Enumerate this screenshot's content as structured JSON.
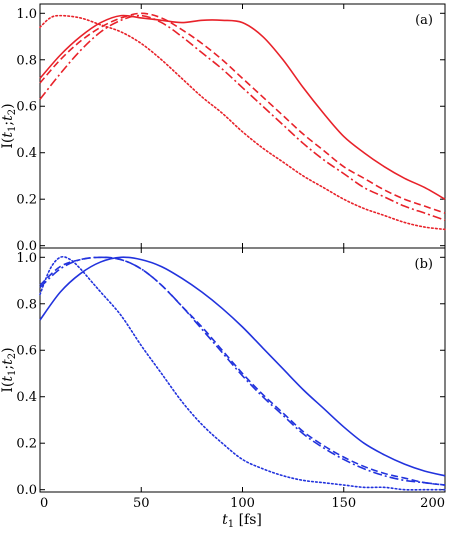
{
  "chart_data": [
    {
      "type": "line",
      "panel_label": "(a)",
      "ylabel": "I(t1;t2)",
      "xlabel": "",
      "xlim": [
        0,
        200
      ],
      "ylim": [
        -0.01,
        1.04
      ],
      "x_ticks": [
        0,
        50,
        100,
        150,
        200
      ],
      "x_tick_labels_shown": false,
      "y_ticks": [
        0.0,
        0.2,
        0.4,
        0.6,
        0.8,
        1.0
      ],
      "y_tick_labels": [
        "0.0",
        "0.2",
        "0.4",
        "0.6",
        "0.8",
        "1.0"
      ],
      "grid": false,
      "legend": "none",
      "color": "#e8222a",
      "series": [
        {
          "style": "solid",
          "x": [
            0,
            10,
            20,
            30,
            40,
            50,
            60,
            70,
            80,
            90,
            100,
            110,
            120,
            130,
            140,
            150,
            160,
            170,
            180,
            190,
            200
          ],
          "y": [
            0.72,
            0.82,
            0.9,
            0.96,
            0.99,
            0.98,
            0.97,
            0.96,
            0.97,
            0.97,
            0.96,
            0.9,
            0.8,
            0.68,
            0.57,
            0.47,
            0.4,
            0.34,
            0.29,
            0.25,
            0.2
          ]
        },
        {
          "style": "dashed",
          "x": [
            0,
            10,
            20,
            30,
            40,
            50,
            60,
            70,
            80,
            90,
            100,
            110,
            120,
            130,
            140,
            150,
            160,
            170,
            180,
            190,
            200
          ],
          "y": [
            0.7,
            0.8,
            0.88,
            0.94,
            0.98,
            1.0,
            0.98,
            0.93,
            0.87,
            0.8,
            0.72,
            0.64,
            0.56,
            0.48,
            0.41,
            0.34,
            0.29,
            0.24,
            0.2,
            0.17,
            0.14
          ]
        },
        {
          "style": "dash-dot",
          "x": [
            0,
            10,
            20,
            30,
            40,
            50,
            60,
            70,
            80,
            90,
            100,
            110,
            120,
            130,
            140,
            150,
            160,
            170,
            180,
            190,
            200
          ],
          "y": [
            0.63,
            0.74,
            0.84,
            0.92,
            0.97,
            0.99,
            0.96,
            0.9,
            0.83,
            0.76,
            0.68,
            0.6,
            0.52,
            0.44,
            0.37,
            0.31,
            0.25,
            0.21,
            0.17,
            0.14,
            0.11
          ]
        },
        {
          "style": "dotted",
          "x": [
            0,
            5,
            10,
            20,
            30,
            40,
            50,
            60,
            70,
            80,
            90,
            100,
            110,
            120,
            130,
            140,
            150,
            160,
            170,
            180,
            190,
            200
          ],
          "y": [
            0.94,
            0.98,
            0.99,
            0.98,
            0.95,
            0.92,
            0.87,
            0.8,
            0.72,
            0.64,
            0.57,
            0.49,
            0.42,
            0.36,
            0.3,
            0.25,
            0.2,
            0.16,
            0.13,
            0.1,
            0.08,
            0.07
          ]
        }
      ]
    },
    {
      "type": "line",
      "panel_label": "(b)",
      "ylabel": "I(t1;t2)",
      "xlabel": "t1 [fs]",
      "xlim": [
        0,
        200
      ],
      "ylim": [
        -0.01,
        1.04
      ],
      "x_ticks": [
        0,
        50,
        100,
        150,
        200
      ],
      "x_tick_labels": [
        "0",
        "50",
        "100",
        "150",
        "200"
      ],
      "y_ticks": [
        0.0,
        0.2,
        0.4,
        0.6,
        0.8,
        1.0
      ],
      "y_tick_labels": [
        "0.0",
        "0.2",
        "0.4",
        "0.6",
        "0.8",
        "1.0"
      ],
      "grid": false,
      "legend": "none",
      "color": "#2233dd",
      "series": [
        {
          "style": "solid",
          "x": [
            0,
            10,
            20,
            30,
            40,
            50,
            60,
            70,
            80,
            90,
            100,
            110,
            120,
            130,
            140,
            150,
            160,
            170,
            180,
            190,
            200
          ],
          "y": [
            0.73,
            0.85,
            0.93,
            0.98,
            1.0,
            0.99,
            0.96,
            0.91,
            0.85,
            0.78,
            0.7,
            0.61,
            0.52,
            0.43,
            0.35,
            0.27,
            0.2,
            0.15,
            0.11,
            0.08,
            0.06
          ]
        },
        {
          "style": "dashed",
          "x": [
            0,
            10,
            20,
            30,
            40,
            50,
            60,
            70,
            80,
            90,
            100,
            110,
            120,
            130,
            140,
            150,
            160,
            170,
            180,
            190,
            200
          ],
          "y": [
            0.88,
            0.96,
            0.99,
            1.0,
            0.99,
            0.95,
            0.88,
            0.79,
            0.7,
            0.6,
            0.5,
            0.41,
            0.33,
            0.25,
            0.19,
            0.14,
            0.1,
            0.07,
            0.05,
            0.03,
            0.02
          ]
        },
        {
          "style": "dash-dot",
          "x": [
            0,
            10,
            20,
            30,
            40,
            50,
            60,
            70,
            80,
            90,
            100,
            110,
            120,
            130,
            140,
            150,
            160,
            170,
            180,
            190,
            200
          ],
          "y": [
            0.87,
            0.95,
            0.99,
            1.0,
            0.99,
            0.95,
            0.88,
            0.79,
            0.69,
            0.59,
            0.49,
            0.4,
            0.32,
            0.24,
            0.18,
            0.13,
            0.09,
            0.06,
            0.04,
            0.03,
            0.02
          ]
        },
        {
          "style": "dotted",
          "x": [
            0,
            5,
            10,
            15,
            20,
            25,
            30,
            40,
            50,
            60,
            70,
            80,
            90,
            100,
            110,
            120,
            130,
            140,
            150,
            160,
            170,
            180,
            190,
            200
          ],
          "y": [
            0.84,
            0.95,
            1.0,
            0.99,
            0.95,
            0.9,
            0.85,
            0.75,
            0.62,
            0.5,
            0.38,
            0.28,
            0.2,
            0.13,
            0.09,
            0.06,
            0.04,
            0.03,
            0.02,
            0.01,
            0.01,
            0.0,
            0.0,
            0.0
          ]
        }
      ]
    }
  ]
}
